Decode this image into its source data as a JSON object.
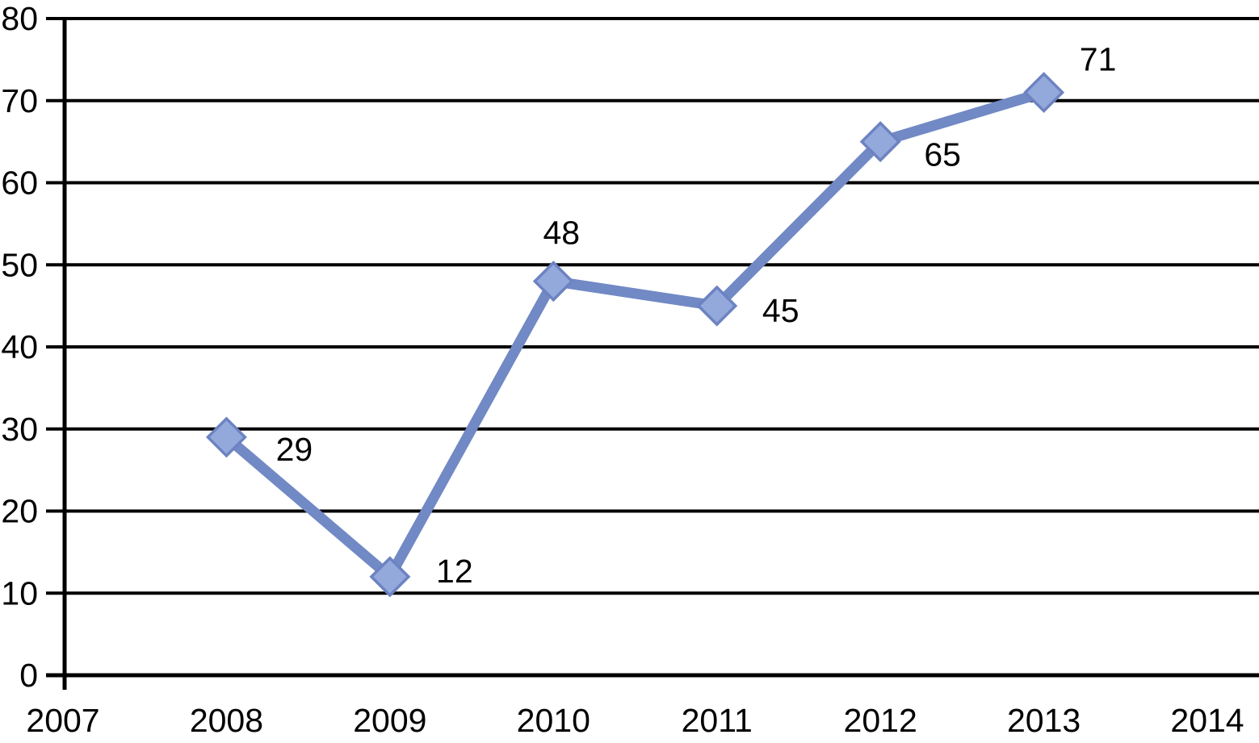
{
  "chart_data": {
    "type": "line",
    "title": "",
    "xlabel": "",
    "ylabel": "",
    "grid": "horizontal-on",
    "legend": "none",
    "x_axis": {
      "min": 2007,
      "max": 2014,
      "tick_labels": [
        "2007",
        "2008",
        "2009",
        "2010",
        "2011",
        "2012",
        "2013",
        "2014"
      ]
    },
    "y_axis": {
      "min": 0,
      "max": 80,
      "step": 10,
      "tick_labels": [
        "0",
        "10",
        "20",
        "30",
        "40",
        "50",
        "60",
        "70",
        "80"
      ]
    },
    "categories": [
      2008,
      2009,
      2010,
      2011,
      2012,
      2013
    ],
    "values": [
      29,
      12,
      48,
      45,
      65,
      71
    ],
    "series": [
      {
        "name": "series-1",
        "points": [
          {
            "x": 2008,
            "y": 29,
            "label": "29",
            "label_offset": [
              84,
              15
            ]
          },
          {
            "x": 2009,
            "y": 12,
            "label": "12",
            "label_offset": [
              80,
              -7
            ]
          },
          {
            "x": 2010,
            "y": 48,
            "label": "48",
            "label_offset": [
              10,
              -60
            ]
          },
          {
            "x": 2011,
            "y": 45,
            "label": "45",
            "label_offset": [
              79,
              6
            ]
          },
          {
            "x": 2012,
            "y": 65,
            "label": "65",
            "label_offset": [
              77,
              16
            ]
          },
          {
            "x": 2013,
            "y": 71,
            "label": "71",
            "label_offset": [
              67,
              -41
            ]
          }
        ]
      }
    ],
    "colors": {
      "line": "#7189C4",
      "marker_fill": "#93A9DC",
      "marker_stroke": "#6D83C1",
      "grid": "#000000",
      "axis": "#000000",
      "text": "#000000",
      "background": "#FFFFFF"
    }
  }
}
